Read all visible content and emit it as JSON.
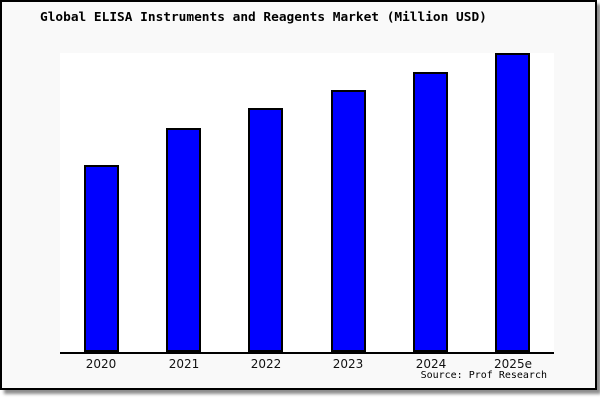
{
  "window": {
    "title": "Global ELISA Instruments and Reagents Market (Million USD)"
  },
  "chart_data": {
    "type": "bar",
    "title": "Global ELISA Instruments and Reagents Market (Million USD)",
    "categories": [
      "2020",
      "2021",
      "2022",
      "2023",
      "2024",
      "2025e"
    ],
    "values": [
      62.7,
      75.0,
      81.7,
      87.7,
      93.7,
      100.0
    ],
    "value_note_unit": "relative market size, % of 2025e (no y-axis labels shown)",
    "xlabel": "",
    "ylabel": "",
    "ylim": [
      0,
      100
    ],
    "y_tick_labels": [],
    "grid": false,
    "legend_position": "none",
    "bar_color": "#0000ff",
    "bar_edge_color": "#000000"
  },
  "footer": {
    "source_label": "Source: Prof Research"
  },
  "colors": {
    "frame_background": "#f9f9f9",
    "plot_background": "#ffffff",
    "border": "#000000",
    "bar_fill": "#0000ff",
    "bar_edge": "#000000",
    "text": "#000000"
  }
}
